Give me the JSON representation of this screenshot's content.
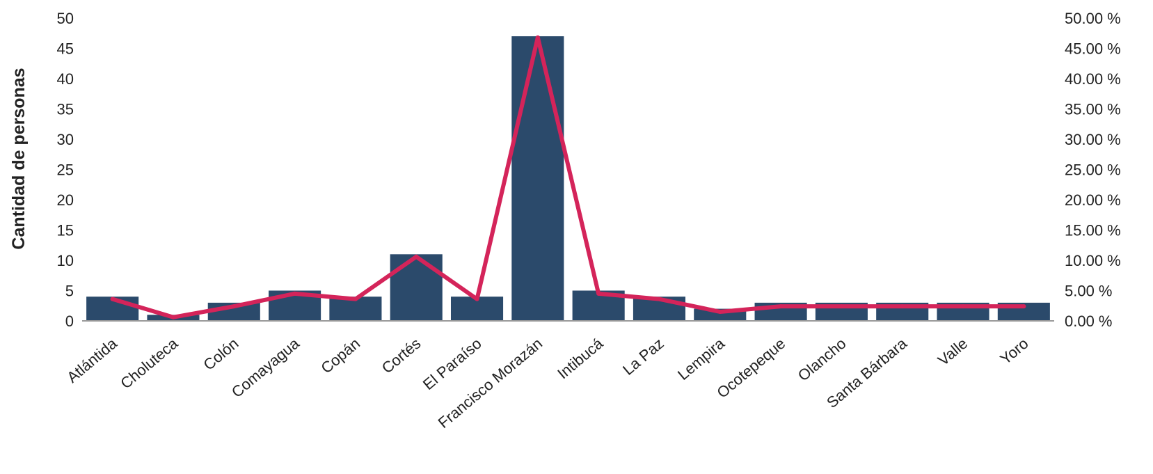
{
  "chart_data": {
    "type": "bar",
    "categories": [
      "Atlántida",
      "Choluteca",
      "Colón",
      "Comayagua",
      "Copán",
      "Cortés",
      "El Paraíso",
      "Francisco Morazán",
      "Intibucá",
      "La Paz",
      "Lempira",
      "Ocotepeque",
      "Olancho",
      "Santa Bárbara",
      "Valle",
      "Yoro"
    ],
    "series": [
      {
        "type": "bar",
        "axis": "left",
        "values": [
          4,
          1,
          3,
          5,
          4,
          11,
          4,
          47,
          5,
          4,
          2,
          3,
          3,
          3,
          3,
          3
        ],
        "color": "#2b4a6b"
      },
      {
        "type": "line",
        "axis": "right",
        "values": [
          3.6,
          0.6,
          2.4,
          4.5,
          3.6,
          10.6,
          3.6,
          46.8,
          4.5,
          3.6,
          1.5,
          2.4,
          2.4,
          2.4,
          2.4,
          2.4
        ],
        "color": "#d4245a"
      }
    ],
    "ylabel": "Cantidad de personas",
    "ylim": [
      0,
      50
    ],
    "yticks": [
      "0",
      "5",
      "10",
      "15",
      "20",
      "25",
      "30",
      "35",
      "40",
      "45",
      "50"
    ],
    "y2lim": [
      0,
      50
    ],
    "y2ticks": [
      "0.00 %",
      "5.00 %",
      "10.00 %",
      "15.00 %",
      "20.00 %",
      "25.00 %",
      "30.00 %",
      "35.00 %",
      "40.00 %",
      "45.00 %",
      "50.00 %"
    ],
    "grid": false,
    "legend": "none"
  }
}
